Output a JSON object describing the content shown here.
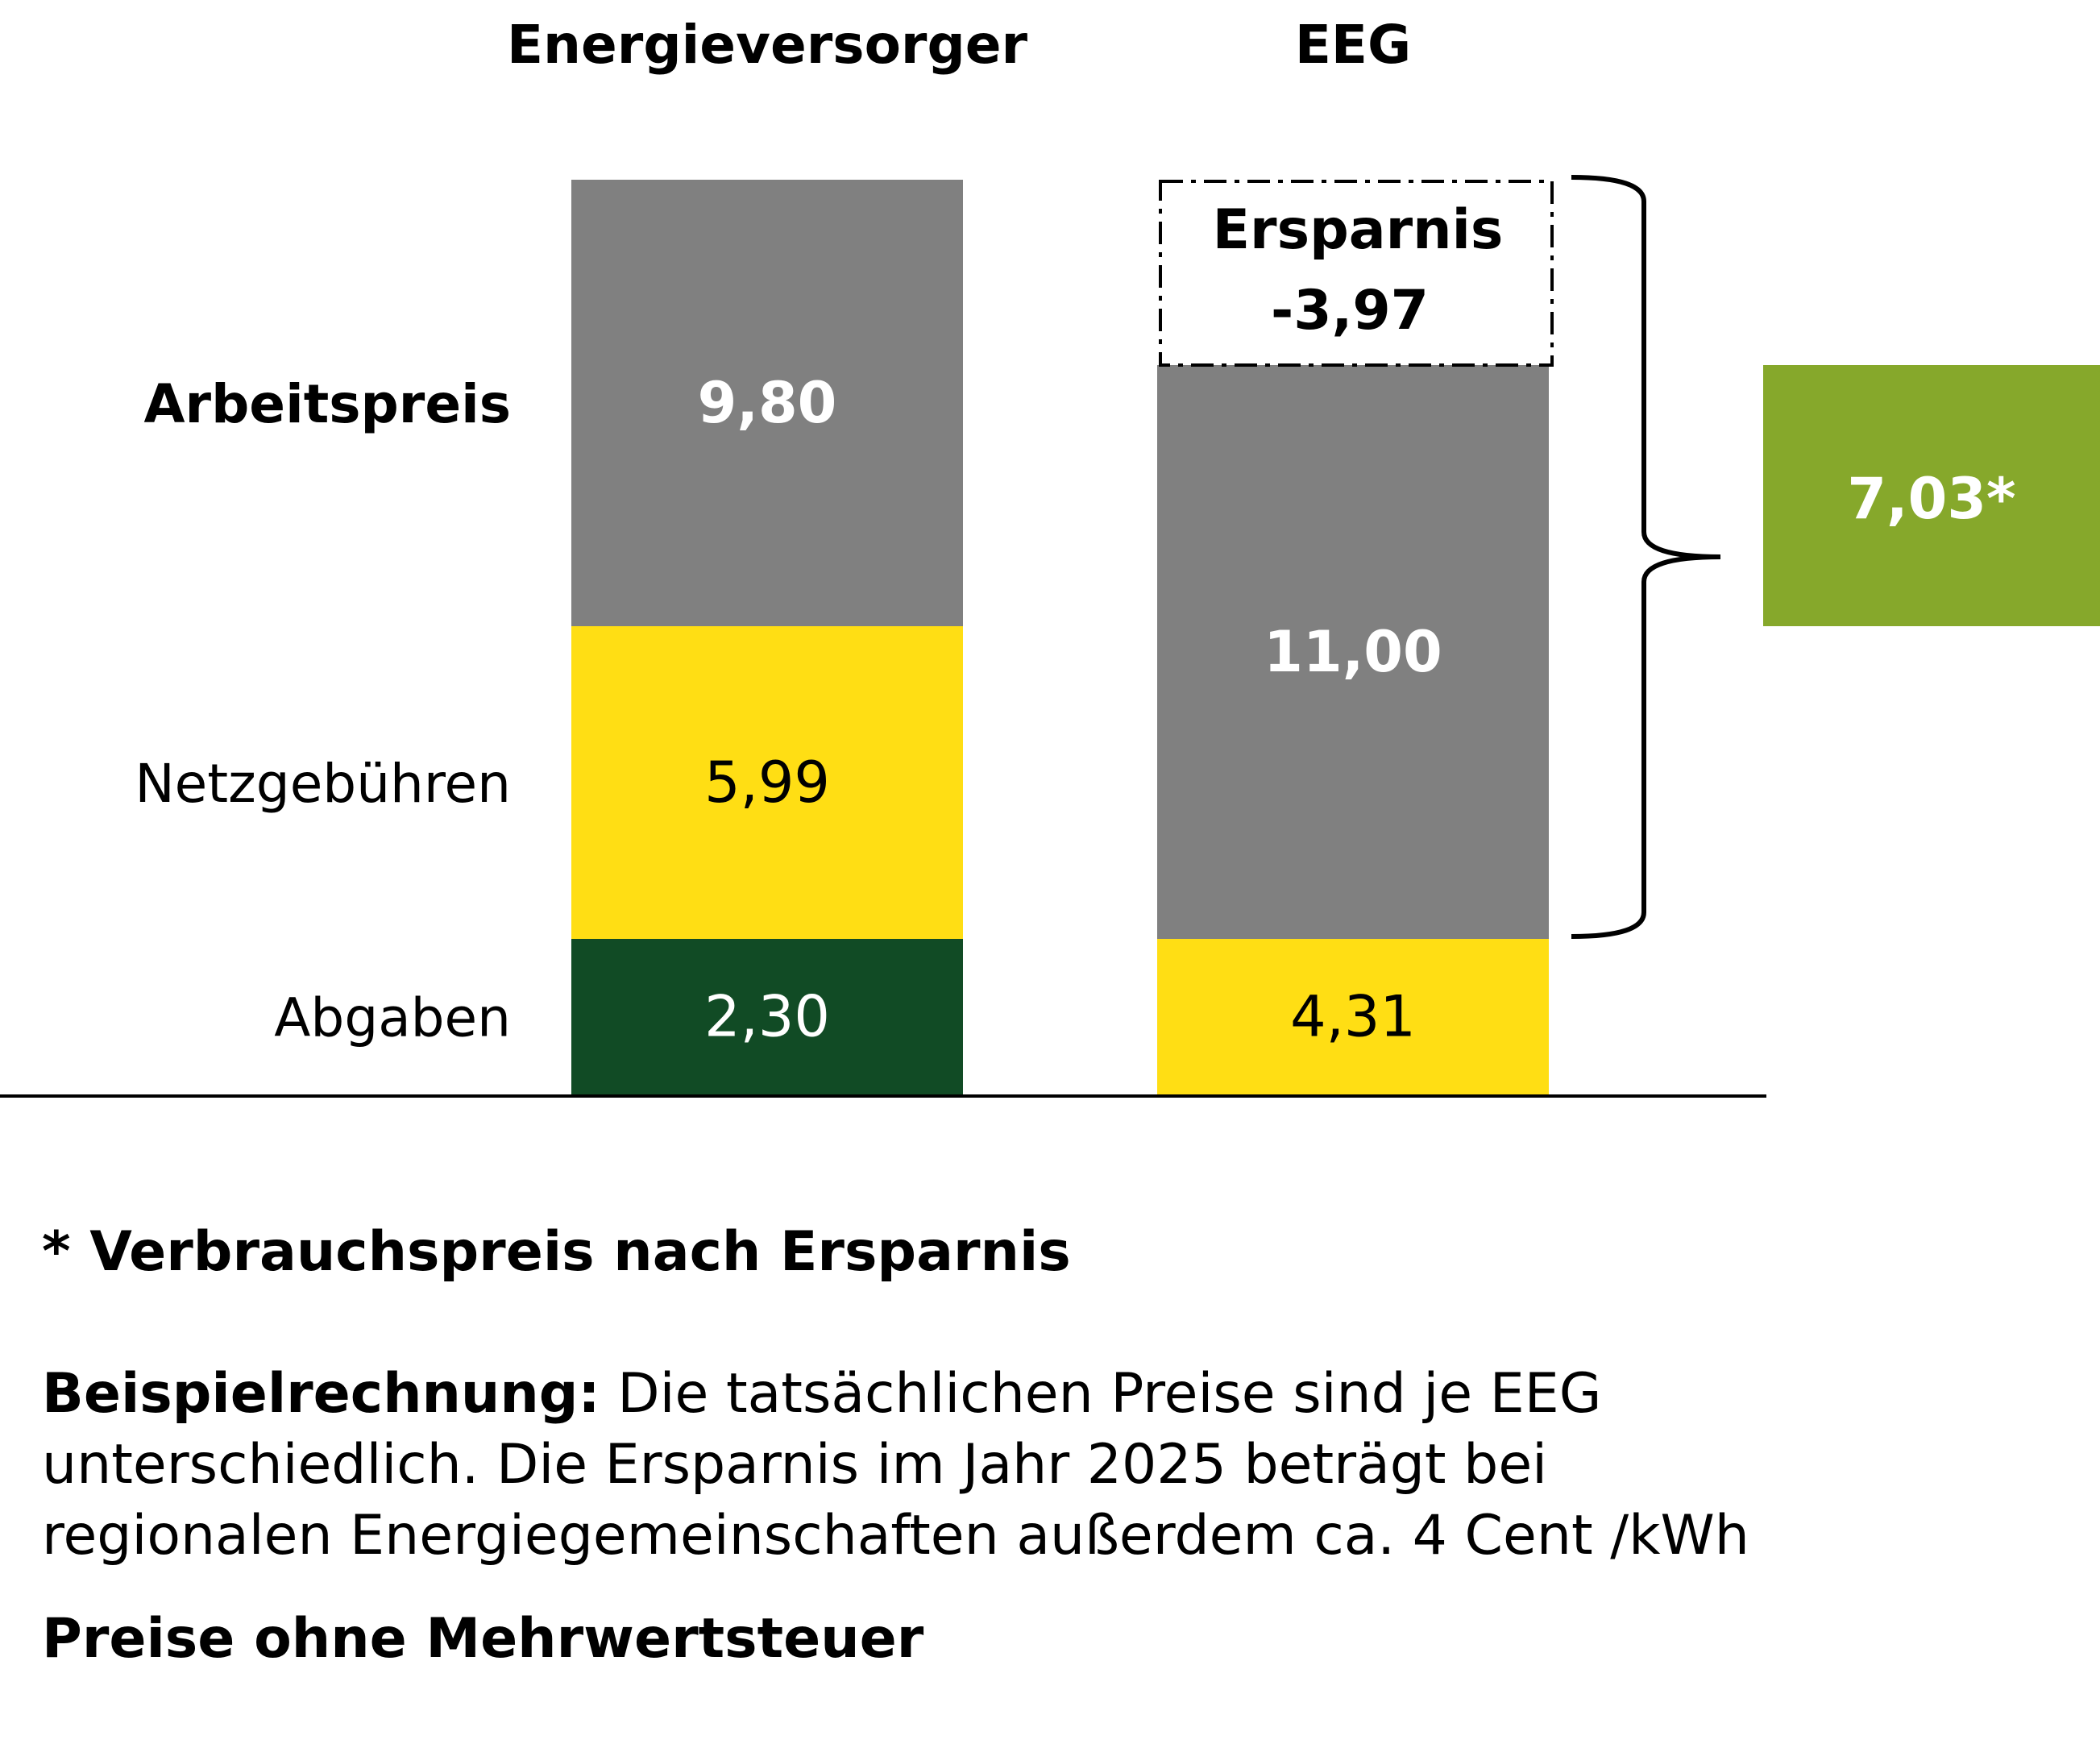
{
  "chart_data": {
    "type": "bar",
    "stacked": true,
    "categories": [
      "Energieversorger",
      "EEG"
    ],
    "row_labels": [
      {
        "text": "Arbeitspreis",
        "bold": true
      },
      {
        "text": "Netzgebühren",
        "bold": false
      },
      {
        "text": "Abgaben",
        "bold": false
      }
    ],
    "stacks": [
      {
        "category": "Energieversorger",
        "segments": [
          {
            "name": "Abgaben",
            "value": 2.3,
            "label": "2,30",
            "color": "#114B25",
            "text_color": "#ffffff",
            "bold": false
          },
          {
            "name": "Netzgebühren",
            "value": 5.99,
            "label": "5,99",
            "color": "#FFDE14",
            "text_color": "#000000",
            "bold": false
          },
          {
            "name": "Arbeitspreis",
            "value": 9.8,
            "label": "9,80",
            "color": "#808080",
            "text_color": "#ffffff",
            "bold": true
          }
        ]
      },
      {
        "category": "EEG",
        "segments": [
          {
            "name": "Netzgebühren",
            "value": 4.31,
            "label": "4,31",
            "color": "#FFDE14",
            "text_color": "#000000",
            "bold": false
          },
          {
            "name": "Arbeitspreis",
            "value": 11.0,
            "label": "11,00",
            "color": "#808080",
            "text_color": "#ffffff",
            "bold": true
          }
        ]
      }
    ],
    "savings_box": {
      "title": "Ersparnis",
      "value": -3.97,
      "label": "-3,97"
    },
    "result_box": {
      "value": 7.03,
      "label": "7,03*",
      "color": "#86A82B"
    },
    "grid": false,
    "legend": "none"
  },
  "footnotes": {
    "asterisk": "* Verbrauchspreis nach Ersparnis",
    "example_bold": "Beispielrechnung:",
    "example_text_1": " Die tatsächlichen Preise sind je EEG",
    "example_text_2": "unterschiedlich. Die Ersparnis im Jahr 2025 beträgt bei",
    "example_text_3": "regionalen Energiegemeinschaften außerdem ca. 4 Cent /kWh",
    "vat": "Preise ohne Mehrwertsteuer"
  }
}
